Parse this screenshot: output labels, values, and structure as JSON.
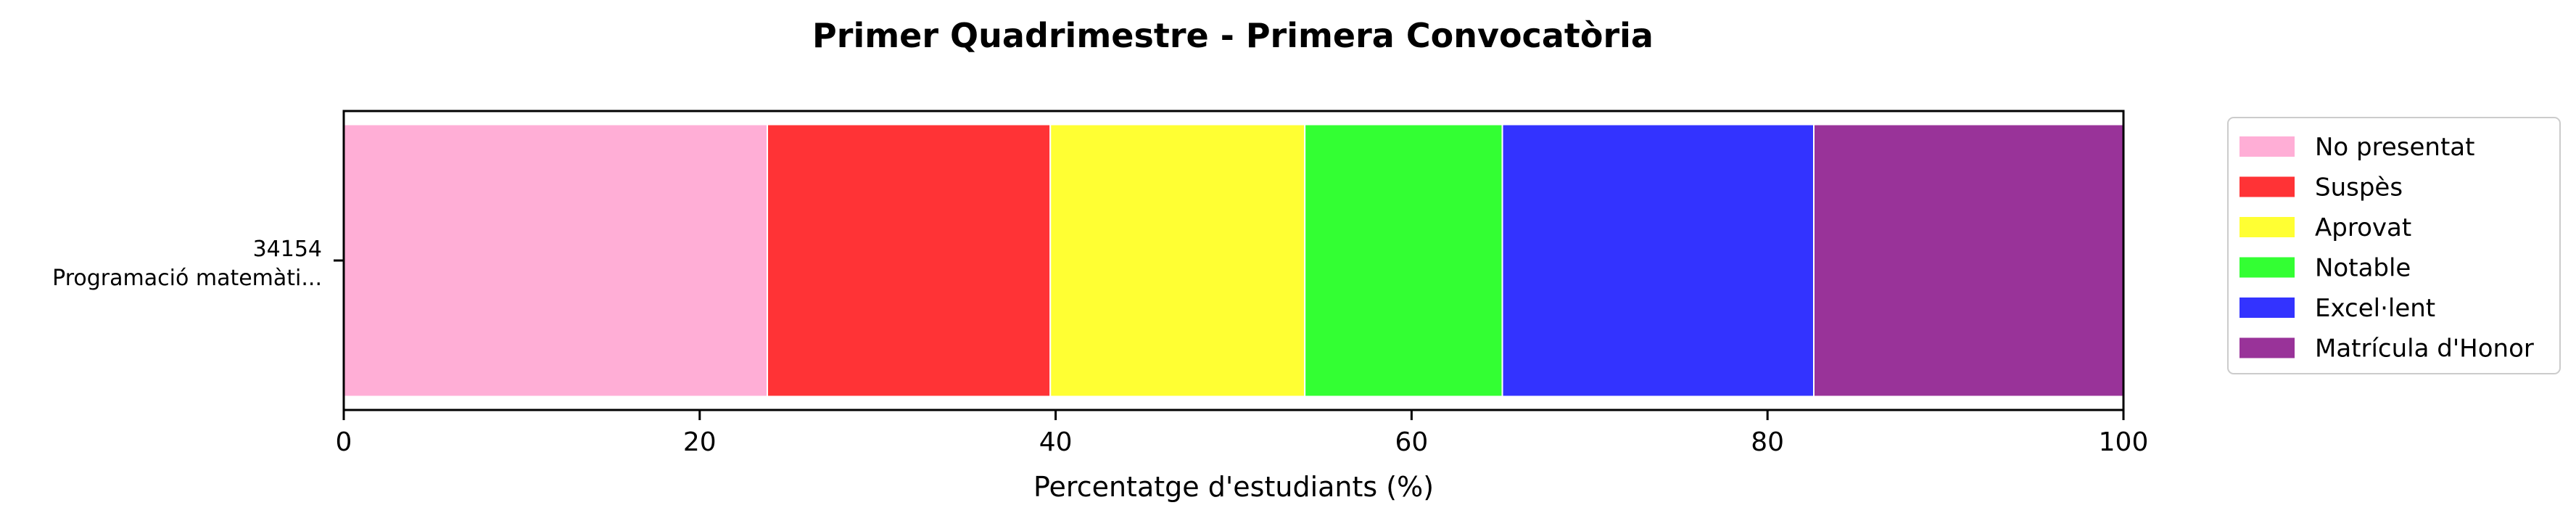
{
  "chart_data": {
    "type": "bar",
    "orientation": "horizontal",
    "stacked": true,
    "title": "Primer Quadrimestre - Primera Convocatòria",
    "xlabel": "Percentatge d'estudiants (%)",
    "ylabel": "",
    "xlim": [
      0,
      100
    ],
    "xticks": [
      "0",
      "20",
      "40",
      "60",
      "80",
      "100"
    ],
    "categories": [
      {
        "code": "34154",
        "name": "Programació matemàti..."
      }
    ],
    "series": [
      {
        "name": "No presentat",
        "color": "#ffaed6",
        "values": [
          23.8
        ]
      },
      {
        "name": "Suspès",
        "color": "#ff3336",
        "values": [
          15.9
        ]
      },
      {
        "name": "Aprovat",
        "color": "#ffff33",
        "values": [
          14.3
        ]
      },
      {
        "name": "Notable",
        "color": "#33ff33",
        "values": [
          11.1
        ]
      },
      {
        "name": "Excel·lent",
        "color": "#3333ff",
        "values": [
          17.5
        ]
      },
      {
        "name": "Matrícula d'Honor",
        "color": "#993399",
        "values": [
          17.4
        ]
      }
    ],
    "legend": "outside-right",
    "grid": false
  }
}
